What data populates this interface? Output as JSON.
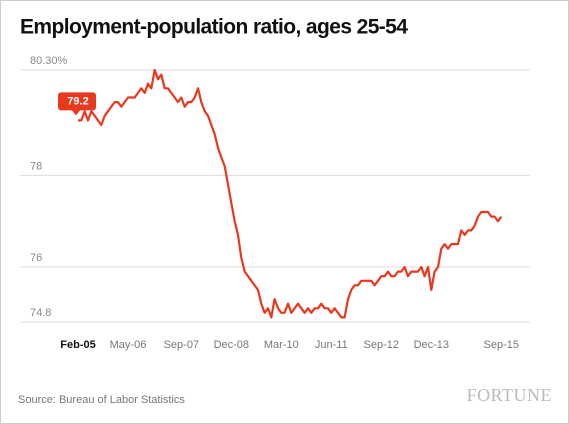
{
  "chart_data": {
    "type": "line",
    "title": "Employment-population ratio, ages 25-54",
    "source": "Source: Bureau of Labor Statistics",
    "brand": "FORTUNE",
    "x": [
      "2005-02",
      "2005-03",
      "2005-04",
      "2005-05",
      "2005-06",
      "2005-07",
      "2005-08",
      "2005-09",
      "2005-10",
      "2005-11",
      "2005-12",
      "2006-01",
      "2006-02",
      "2006-03",
      "2006-04",
      "2006-05",
      "2006-06",
      "2006-07",
      "2006-08",
      "2006-09",
      "2006-10",
      "2006-11",
      "2006-12",
      "2007-01",
      "2007-02",
      "2007-03",
      "2007-04",
      "2007-05",
      "2007-06",
      "2007-07",
      "2007-08",
      "2007-09",
      "2007-10",
      "2007-11",
      "2007-12",
      "2008-01",
      "2008-02",
      "2008-03",
      "2008-04",
      "2008-05",
      "2008-06",
      "2008-07",
      "2008-08",
      "2008-09",
      "2008-10",
      "2008-11",
      "2008-12",
      "2009-01",
      "2009-02",
      "2009-03",
      "2009-04",
      "2009-05",
      "2009-06",
      "2009-07",
      "2009-08",
      "2009-09",
      "2009-10",
      "2009-11",
      "2009-12",
      "2010-01",
      "2010-02",
      "2010-03",
      "2010-04",
      "2010-05",
      "2010-06",
      "2010-07",
      "2010-08",
      "2010-09",
      "2010-10",
      "2010-11",
      "2010-12",
      "2011-01",
      "2011-02",
      "2011-03",
      "2011-04",
      "2011-05",
      "2011-06",
      "2011-07",
      "2011-08",
      "2011-09",
      "2011-10",
      "2011-11",
      "2011-12",
      "2012-01",
      "2012-02",
      "2012-03",
      "2012-04",
      "2012-05",
      "2012-06",
      "2012-07",
      "2012-08",
      "2012-09",
      "2012-10",
      "2012-11",
      "2012-12",
      "2013-01",
      "2013-02",
      "2013-03",
      "2013-04",
      "2013-05",
      "2013-06",
      "2013-07",
      "2013-08",
      "2013-09",
      "2013-10",
      "2013-11",
      "2013-12",
      "2014-01",
      "2014-02",
      "2014-03",
      "2014-04",
      "2014-05",
      "2014-06",
      "2014-07",
      "2014-08",
      "2014-09",
      "2014-10",
      "2014-11",
      "2014-12",
      "2015-01",
      "2015-02",
      "2015-03",
      "2015-04",
      "2015-05",
      "2015-06",
      "2015-07",
      "2015-08",
      "2015-09"
    ],
    "series": [
      {
        "color": "#e8391e",
        "values": [
          79.2,
          79.2,
          79.4,
          79.2,
          79.4,
          79.3,
          79.2,
          79.1,
          79.3,
          79.4,
          79.5,
          79.6,
          79.6,
          79.5,
          79.6,
          79.7,
          79.7,
          79.7,
          79.8,
          79.9,
          79.8,
          80.0,
          79.9,
          80.3,
          80.1,
          80.2,
          79.9,
          79.9,
          79.8,
          79.7,
          79.6,
          79.7,
          79.5,
          79.6,
          79.6,
          79.7,
          79.9,
          79.6,
          79.4,
          79.3,
          79.1,
          78.9,
          78.6,
          78.4,
          78.2,
          77.8,
          77.4,
          77.0,
          76.7,
          76.2,
          75.9,
          75.8,
          75.7,
          75.6,
          75.5,
          75.2,
          75.0,
          75.1,
          74.9,
          75.3,
          75.1,
          75.0,
          75.0,
          75.2,
          75.0,
          75.1,
          75.2,
          75.1,
          75.0,
          75.1,
          75.0,
          75.1,
          75.1,
          75.2,
          75.1,
          75.1,
          75.0,
          75.1,
          75.0,
          74.9,
          74.9,
          75.3,
          75.5,
          75.6,
          75.6,
          75.7,
          75.7,
          75.7,
          75.7,
          75.6,
          75.7,
          75.8,
          75.8,
          75.9,
          75.8,
          75.8,
          75.9,
          75.9,
          76.0,
          75.8,
          75.9,
          75.9,
          75.9,
          76.0,
          75.8,
          76.0,
          75.5,
          75.9,
          76.0,
          76.4,
          76.5,
          76.4,
          76.5,
          76.5,
          76.5,
          76.8,
          76.7,
          76.8,
          76.8,
          76.9,
          77.1,
          77.2,
          77.2,
          77.2,
          77.1,
          77.1,
          77.0,
          77.1
        ],
        "value_labels": [
          "79.2"
        ]
      }
    ],
    "xticks": [
      {
        "value": "2005-02",
        "label": "Feb-05"
      },
      {
        "value": "2006-05",
        "label": "May-06"
      },
      {
        "value": "2007-09",
        "label": "Sep-07"
      },
      {
        "value": "2008-12",
        "label": "Dec-08"
      },
      {
        "value": "2010-03",
        "label": "Mar-10"
      },
      {
        "value": "2011-06",
        "label": "Jun-11"
      },
      {
        "value": "2012-09",
        "label": "Sep-12"
      },
      {
        "value": "2013-12",
        "label": "Dec-13"
      },
      {
        "value": "2015-09",
        "label": "Sep-15"
      }
    ],
    "ylim": [
      74.8,
      80.3
    ],
    "yticks": [
      74.8,
      76,
      78,
      {
        "value": 80.3,
        "label": "80.30%"
      }
    ],
    "grid": true
  }
}
